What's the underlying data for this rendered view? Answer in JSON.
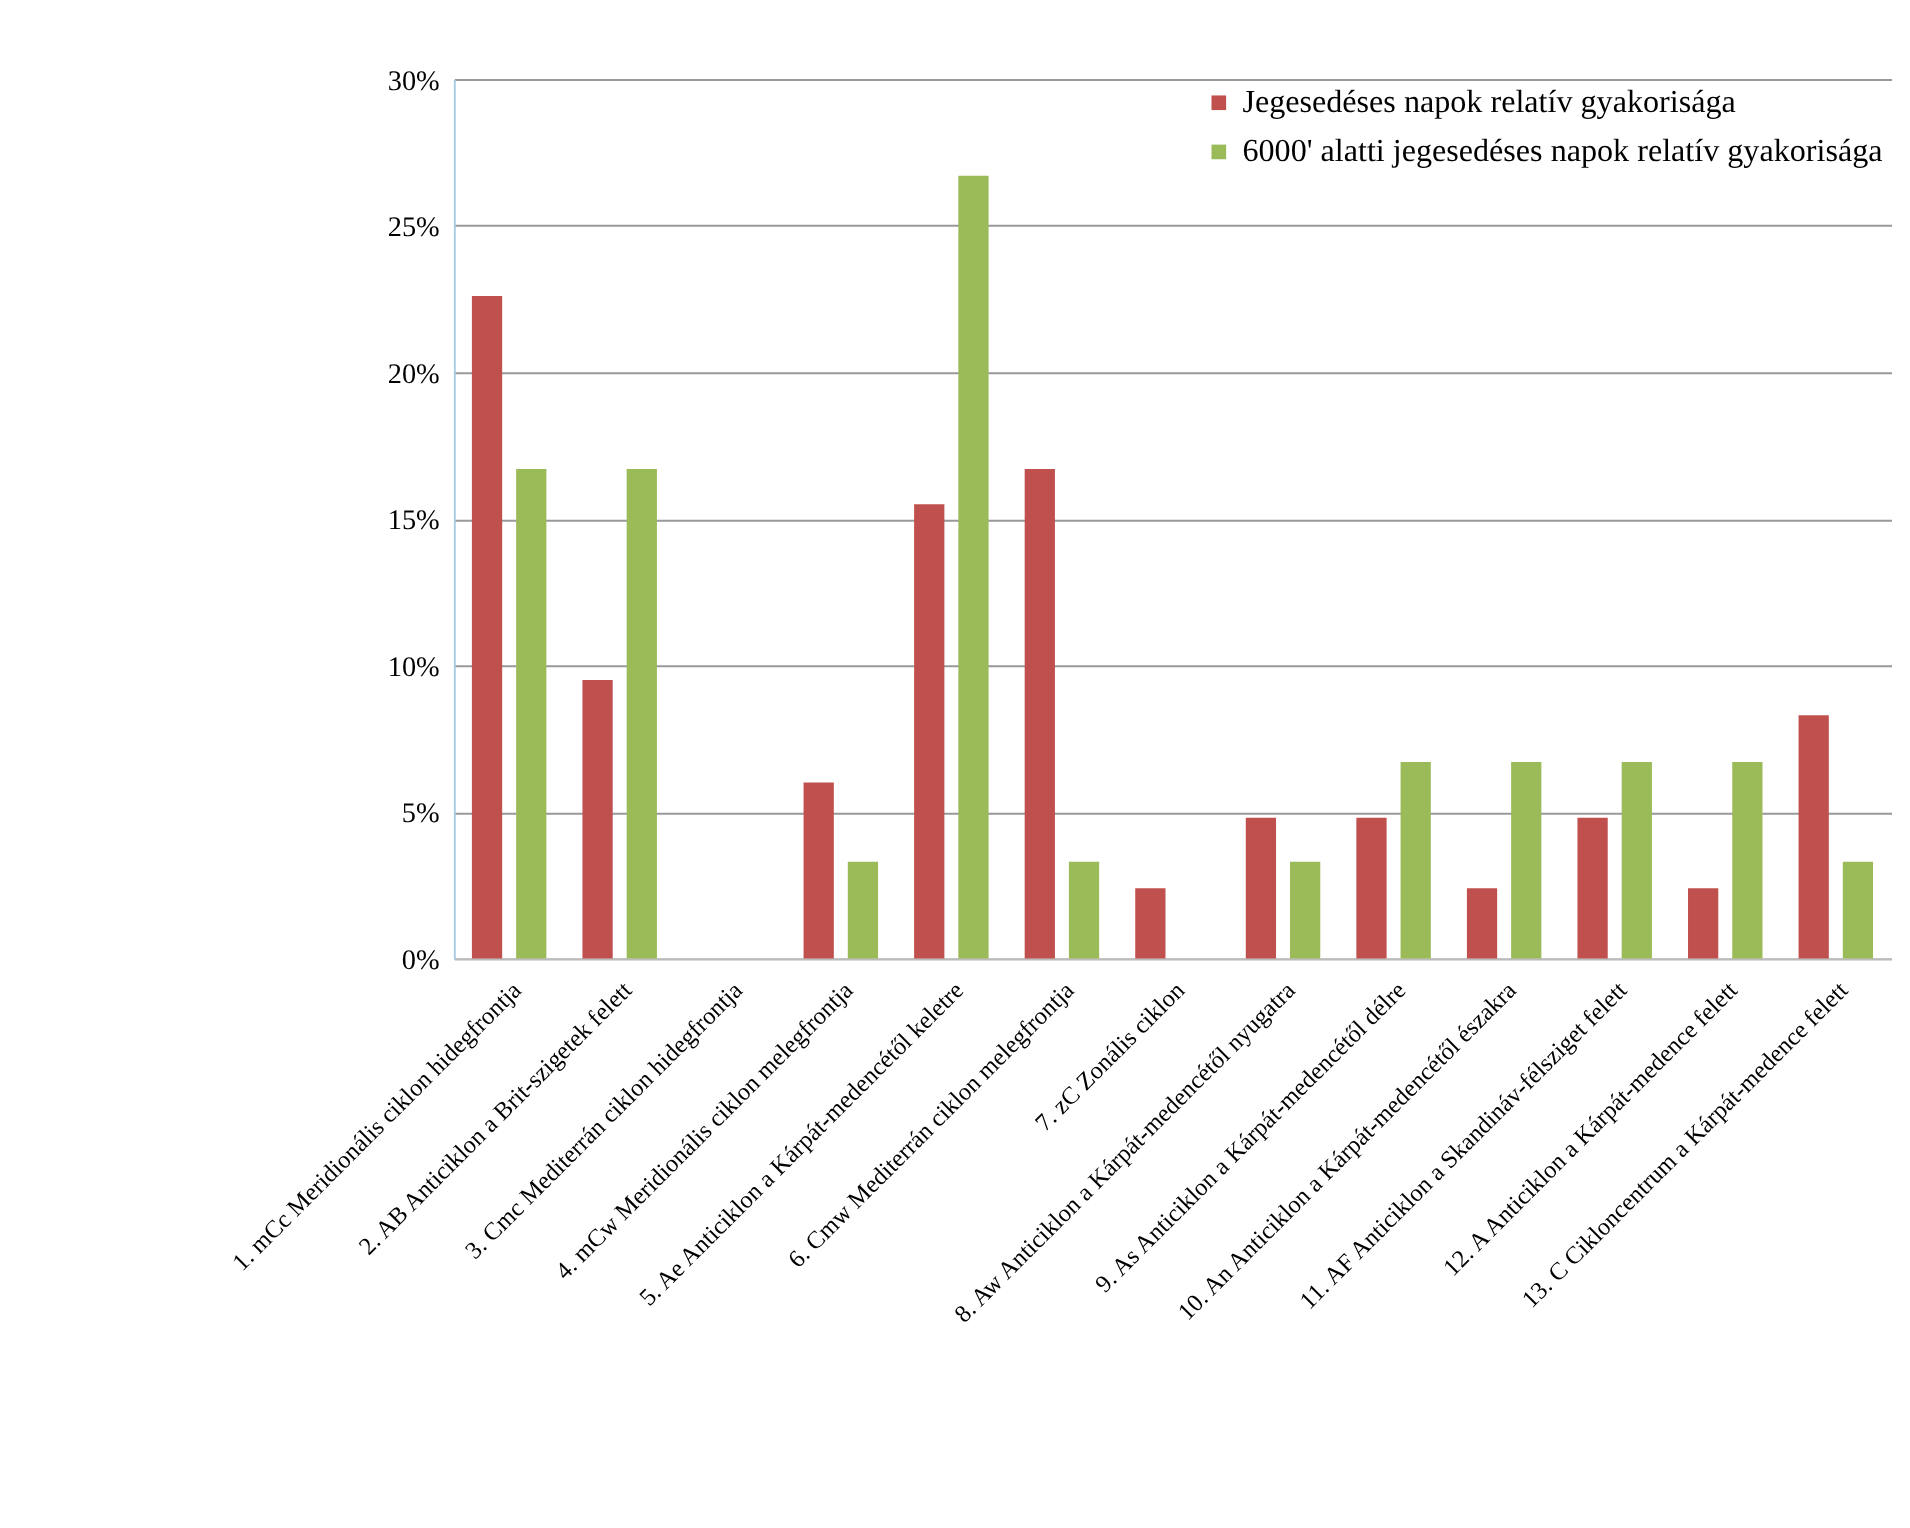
{
  "chart_data": {
    "type": "bar",
    "categories": [
      "1. mCc Meridionális ciklon hidegfrontja",
      "2. AB Anticiklon a Brit-szigetek felett",
      "3. Cmc Mediterrán ciklon hidegfrontja",
      "4. mCw Meridionális ciklon melegfrontja",
      "5. Ae Anticiklon a Kárpát-medencétől keletre",
      "6. Cmw Mediterrán ciklon melegfrontja",
      "7. zC Zonális ciklon",
      "8. Aw Anticiklon a Kárpát-medencétől nyugatra",
      "9. As Anticiklon a Kárpát-medencétől délre",
      "10. An Anticiklon a Kárpát-medencétől északra",
      "11. AF Anticiklon a Skandináv-félsziget felett",
      "12. A Anticiklon a Kárpát-medence felett",
      "13. C Cikloncentrum a Kárpát-medence felett"
    ],
    "series": [
      {
        "name": "Jegesedéses napok relatív gyakorisága",
        "color": "#c0504d",
        "values": [
          22.6,
          9.5,
          0,
          6.0,
          15.5,
          16.7,
          2.4,
          4.8,
          4.8,
          2.4,
          4.8,
          2.4,
          8.3
        ]
      },
      {
        "name": "6000' alatti jegesedéses napok relatív gyakorisága",
        "color": "#9bbb59",
        "values": [
          16.7,
          16.7,
          0,
          3.3,
          26.7,
          3.3,
          0,
          3.3,
          6.7,
          6.7,
          6.7,
          6.7,
          3.3
        ]
      }
    ],
    "ylim": [
      0,
      30
    ],
    "yticks": [
      {
        "value": 0,
        "label": "0%"
      },
      {
        "value": 5,
        "label": "5%"
      },
      {
        "value": 10,
        "label": "10%"
      },
      {
        "value": 15,
        "label": "15%"
      },
      {
        "value": 20,
        "label": "20%"
      },
      {
        "value": 25,
        "label": "25%"
      },
      {
        "value": 30,
        "label": "30%"
      }
    ],
    "grid": "y",
    "legend": "top right"
  }
}
